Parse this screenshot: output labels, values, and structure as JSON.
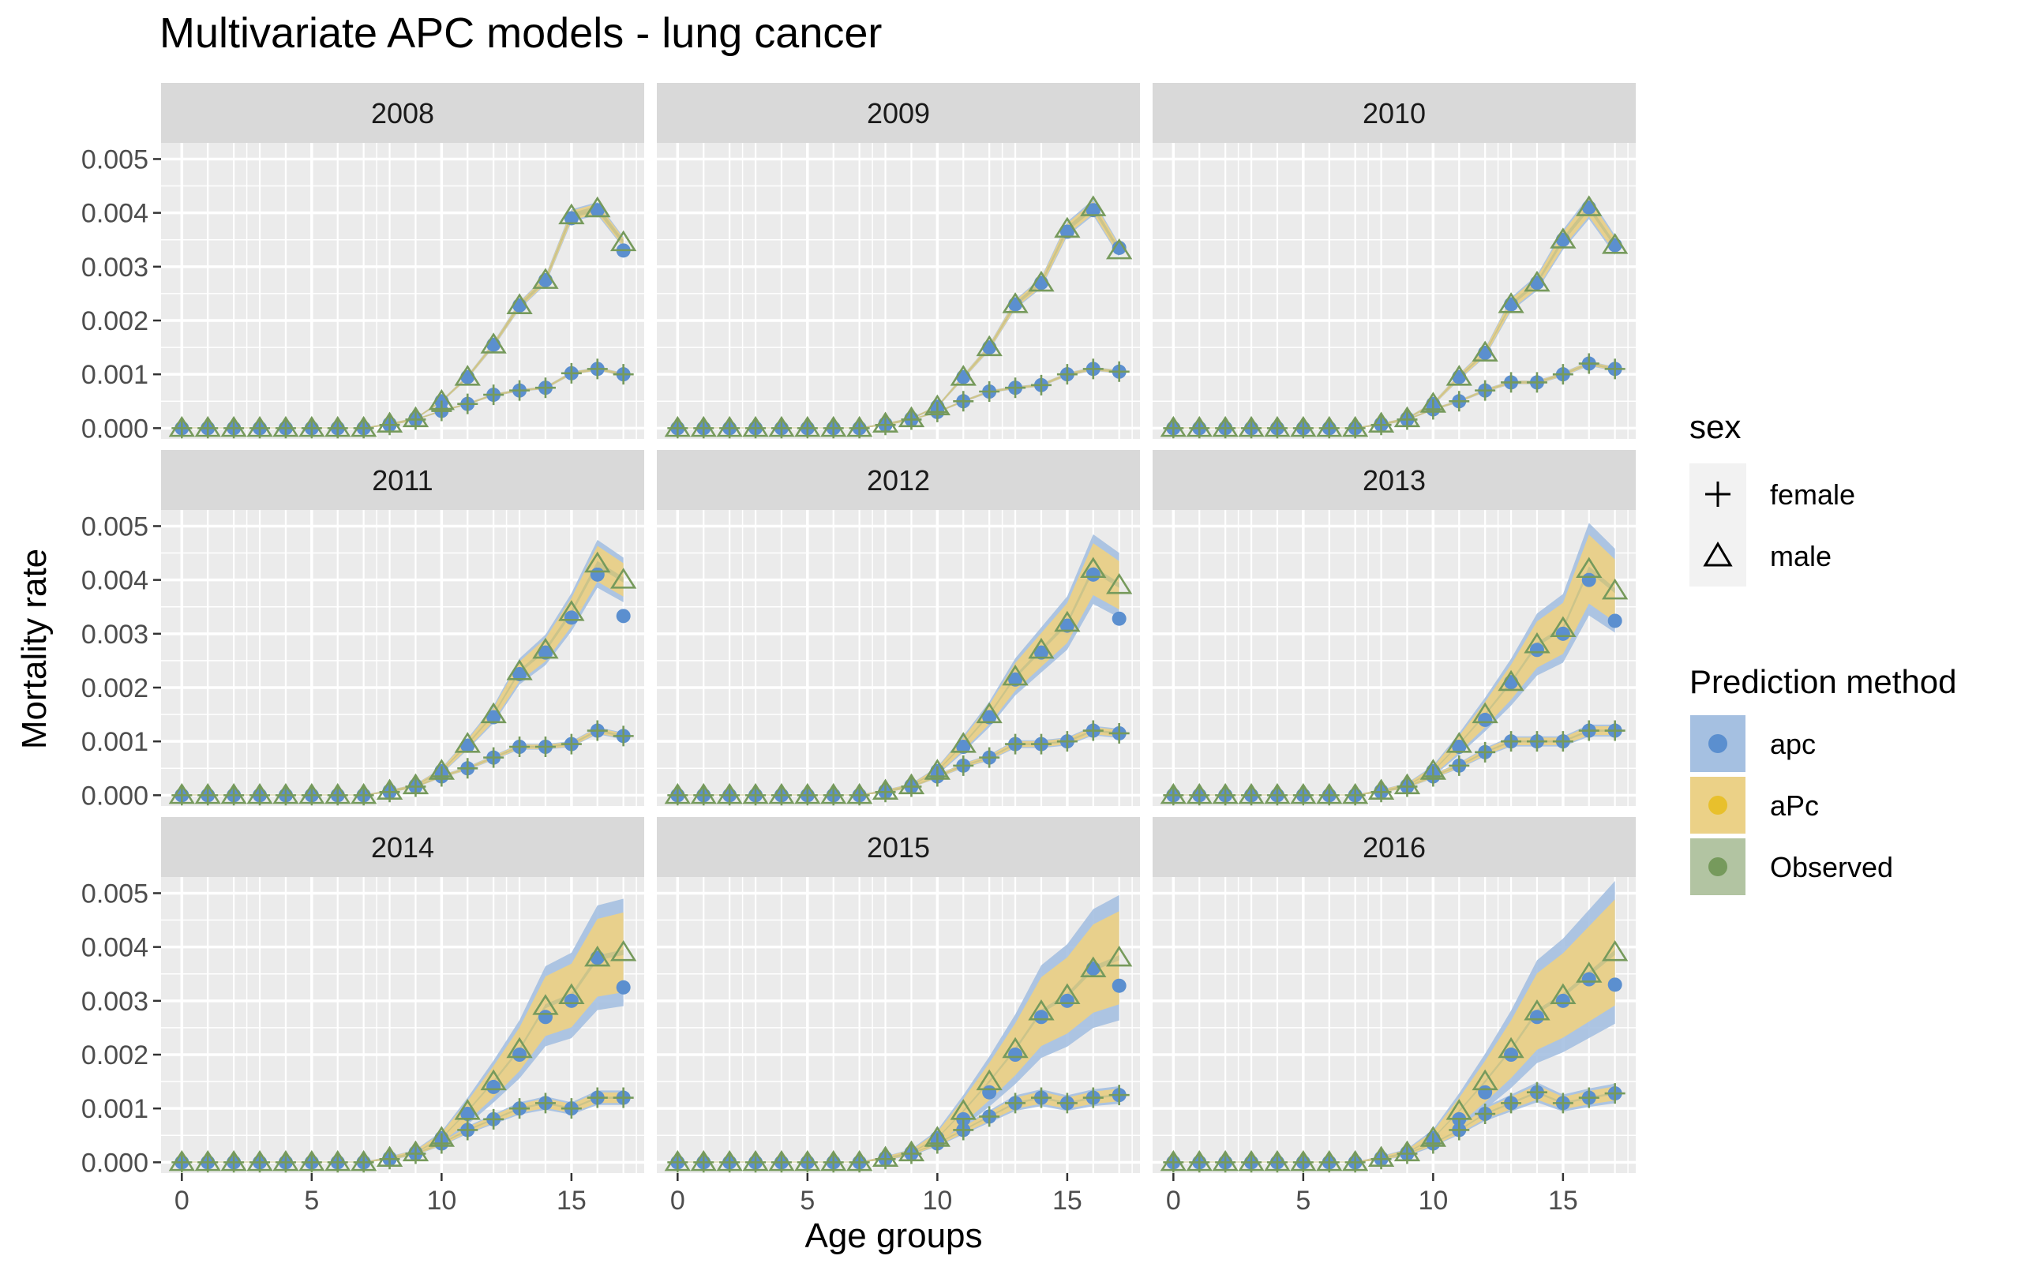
{
  "chart_data": {
    "type": "line",
    "title": "Multivariate APC models - lung cancer",
    "xlabel": "Age groups",
    "ylabel": "Mortality rate",
    "xlim": [
      -0.8,
      17.8
    ],
    "ylim": [
      -0.0002,
      0.0053
    ],
    "x_ticks": [
      0,
      5,
      10,
      15
    ],
    "y_ticks": [
      "0.000",
      "0.001",
      "0.002",
      "0.003",
      "0.004",
      "0.005"
    ],
    "y_tick_values": [
      0,
      0.001,
      0.002,
      0.003,
      0.004,
      0.005
    ],
    "grid": true,
    "legend_position": "right",
    "legends": [
      {
        "title": "sex",
        "entries": [
          {
            "label": "female",
            "shape": "plus"
          },
          {
            "label": "male",
            "shape": "triangle"
          }
        ]
      },
      {
        "title": "Prediction method",
        "entries": [
          {
            "label": "apc",
            "color": "#5b8fcf",
            "fill": "#a5c0e1"
          },
          {
            "label": "aPc",
            "color": "#e8c02c",
            "fill": "#ebd187"
          },
          {
            "label": "Observed",
            "color": "#769a5c",
            "fill": "#b2c4a2"
          }
        ]
      }
    ],
    "panels": [
      {
        "year": "2008",
        "male": [
          0,
          0,
          0,
          0,
          0,
          0,
          0,
          0,
          8e-05,
          0.00018,
          0.0005,
          0.00095,
          0.00155,
          0.00228,
          0.00275,
          0.00395,
          0.00408,
          0.00345
        ],
        "female": [
          0,
          0,
          0,
          0,
          0,
          0,
          0,
          0,
          6e-05,
          0.00016,
          0.00032,
          0.00045,
          0.00062,
          0.0007,
          0.00075,
          0.00102,
          0.0011,
          0.001
        ],
        "apc_male": [
          0,
          0,
          0,
          0,
          0,
          0,
          0,
          0,
          8e-05,
          0.00018,
          0.0005,
          0.00095,
          0.00155,
          0.00228,
          0.00275,
          0.0039,
          0.00405,
          0.0033
        ],
        "apc_female": [
          0,
          0,
          0,
          0,
          0,
          0,
          0,
          0,
          6e-05,
          0.00016,
          0.00032,
          0.00045,
          0.00062,
          0.0007,
          0.00075,
          0.00102,
          0.0011,
          0.001
        ],
        "band": 8e-05
      },
      {
        "year": "2009",
        "male": [
          0,
          0,
          0,
          0,
          0,
          0,
          0,
          0,
          8e-05,
          0.00018,
          0.0004,
          0.00095,
          0.0015,
          0.0023,
          0.0027,
          0.0037,
          0.0041,
          0.0033
        ],
        "female": [
          0,
          0,
          0,
          0,
          0,
          0,
          0,
          0,
          6e-05,
          0.00016,
          0.0003,
          0.0005,
          0.00068,
          0.00075,
          0.0008,
          0.001,
          0.0011,
          0.00105
        ],
        "apc_male": [
          0,
          0,
          0,
          0,
          0,
          0,
          0,
          0,
          8e-05,
          0.00018,
          0.0004,
          0.00095,
          0.0015,
          0.0023,
          0.0027,
          0.00365,
          0.00405,
          0.00335
        ],
        "apc_female": [
          0,
          0,
          0,
          0,
          0,
          0,
          0,
          0,
          6e-05,
          0.00016,
          0.0003,
          0.0005,
          0.00068,
          0.00075,
          0.0008,
          0.001,
          0.0011,
          0.00105
        ],
        "band": 0.0001
      },
      {
        "year": "2010",
        "male": [
          0,
          0,
          0,
          0,
          0,
          0,
          0,
          0,
          8e-05,
          0.00018,
          0.00045,
          0.00095,
          0.0014,
          0.0023,
          0.0027,
          0.0035,
          0.0041,
          0.0034
        ],
        "female": [
          0,
          0,
          0,
          0,
          0,
          0,
          0,
          0,
          6e-05,
          0.00016,
          0.00035,
          0.0005,
          0.0007,
          0.00085,
          0.00085,
          0.001,
          0.0012,
          0.0011
        ],
        "apc_male": [
          0,
          0,
          0,
          0,
          0,
          0,
          0,
          0,
          8e-05,
          0.00018,
          0.00045,
          0.00095,
          0.0014,
          0.0023,
          0.0027,
          0.0035,
          0.0041,
          0.0034
        ],
        "apc_female": [
          0,
          0,
          0,
          0,
          0,
          0,
          0,
          0,
          6e-05,
          0.00016,
          0.00035,
          0.0005,
          0.0007,
          0.00085,
          0.00085,
          0.001,
          0.0012,
          0.0011
        ],
        "band": 0.00015
      },
      {
        "year": "2011",
        "male": [
          0,
          0,
          0,
          0,
          0,
          0,
          0,
          0,
          8e-05,
          0.00018,
          0.00045,
          0.00095,
          0.0015,
          0.0023,
          0.0027,
          0.0034,
          0.0043,
          0.004
        ],
        "female": [
          0,
          0,
          0,
          0,
          0,
          0,
          0,
          0,
          6e-05,
          0.00016,
          0.00035,
          0.0005,
          0.0007,
          0.0009,
          0.0009,
          0.00095,
          0.0012,
          0.0011
        ],
        "apc_male": [
          0,
          0,
          0,
          0,
          0,
          0,
          0,
          0,
          8e-05,
          0.00018,
          0.00045,
          0.00092,
          0.00145,
          0.00225,
          0.00265,
          0.0033,
          0.0041,
          0.00333
        ],
        "apc_female": [
          0,
          0,
          0,
          0,
          0,
          0,
          0,
          0,
          6e-05,
          0.00016,
          0.00035,
          0.0005,
          0.0007,
          0.0009,
          0.0009,
          0.00095,
          0.0012,
          0.0011
        ],
        "band": 0.0003
      },
      {
        "year": "2012",
        "male": [
          0,
          0,
          0,
          0,
          0,
          0,
          0,
          0,
          8e-05,
          0.00018,
          0.00045,
          0.00095,
          0.0015,
          0.0022,
          0.0027,
          0.0032,
          0.0042,
          0.0039
        ],
        "female": [
          0,
          0,
          0,
          0,
          0,
          0,
          0,
          0,
          6e-05,
          0.00016,
          0.00035,
          0.00055,
          0.0007,
          0.00095,
          0.00095,
          0.001,
          0.0012,
          0.00115
        ],
        "apc_male": [
          0,
          0,
          0,
          0,
          0,
          0,
          0,
          0,
          8e-05,
          0.00018,
          0.00045,
          0.0009,
          0.00145,
          0.00215,
          0.00265,
          0.00315,
          0.0041,
          0.00328
        ],
        "apc_female": [
          0,
          0,
          0,
          0,
          0,
          0,
          0,
          0,
          6e-05,
          0.00016,
          0.00035,
          0.00055,
          0.0007,
          0.00095,
          0.00095,
          0.001,
          0.0012,
          0.00115
        ],
        "band": 0.00045
      },
      {
        "year": "2013",
        "male": [
          0,
          0,
          0,
          0,
          0,
          0,
          0,
          0,
          8e-05,
          0.00018,
          0.00045,
          0.00095,
          0.0015,
          0.0021,
          0.0028,
          0.0031,
          0.0042,
          0.0038
        ],
        "female": [
          0,
          0,
          0,
          0,
          0,
          0,
          0,
          0,
          6e-05,
          0.00016,
          0.00035,
          0.00055,
          0.0008,
          0.001,
          0.001,
          0.001,
          0.0012,
          0.0012
        ],
        "apc_male": [
          0,
          0,
          0,
          0,
          0,
          0,
          0,
          0,
          8e-05,
          0.00018,
          0.00045,
          0.0009,
          0.0014,
          0.0021,
          0.0027,
          0.003,
          0.004,
          0.00324
        ],
        "apc_female": [
          0,
          0,
          0,
          0,
          0,
          0,
          0,
          0,
          6e-05,
          0.00016,
          0.00035,
          0.00055,
          0.0008,
          0.001,
          0.001,
          0.001,
          0.0012,
          0.0012
        ],
        "band": 0.0006
      },
      {
        "year": "2014",
        "male": [
          0,
          0,
          0,
          0,
          0,
          0,
          0,
          0,
          8e-05,
          0.00018,
          0.00045,
          0.00095,
          0.0015,
          0.0021,
          0.0029,
          0.0031,
          0.0038,
          0.0039
        ],
        "female": [
          0,
          0,
          0,
          0,
          0,
          0,
          0,
          0,
          6e-05,
          0.00016,
          0.00035,
          0.0006,
          0.0008,
          0.001,
          0.0011,
          0.001,
          0.0012,
          0.0012
        ],
        "apc_male": [
          0,
          0,
          0,
          0,
          0,
          0,
          0,
          0,
          8e-05,
          0.00018,
          0.00045,
          0.0009,
          0.0014,
          0.002,
          0.0027,
          0.003,
          0.0038,
          0.00325
        ],
        "apc_female": [
          0,
          0,
          0,
          0,
          0,
          0,
          0,
          0,
          6e-05,
          0.00016,
          0.00035,
          0.0006,
          0.0008,
          0.001,
          0.0011,
          0.001,
          0.0012,
          0.0012
        ],
        "band": 0.00075
      },
      {
        "year": "2015",
        "male": [
          0,
          0,
          0,
          0,
          0,
          0,
          0,
          0,
          8e-05,
          0.00018,
          0.00045,
          0.00095,
          0.0015,
          0.0021,
          0.0028,
          0.0031,
          0.0036,
          0.0038
        ],
        "female": [
          0,
          0,
          0,
          0,
          0,
          0,
          0,
          0,
          6e-05,
          0.00016,
          0.00035,
          0.0006,
          0.00085,
          0.0011,
          0.0012,
          0.0011,
          0.0012,
          0.00125
        ],
        "apc_male": [
          0,
          0,
          0,
          0,
          0,
          0,
          0,
          0,
          8e-05,
          0.00018,
          0.00045,
          0.0008,
          0.0013,
          0.002,
          0.0027,
          0.003,
          0.0036,
          0.00328
        ],
        "apc_female": [
          0,
          0,
          0,
          0,
          0,
          0,
          0,
          0,
          6e-05,
          0.00016,
          0.00035,
          0.0006,
          0.00085,
          0.0011,
          0.0012,
          0.0011,
          0.0012,
          0.00125
        ],
        "band": 0.0009
      },
      {
        "year": "2016",
        "male": [
          0,
          0,
          0,
          0,
          0,
          0,
          0,
          0,
          8e-05,
          0.00018,
          0.00045,
          0.00095,
          0.0015,
          0.0021,
          0.0028,
          0.0031,
          0.0035,
          0.0039
        ],
        "female": [
          0,
          0,
          0,
          0,
          0,
          0,
          0,
          0,
          6e-05,
          0.00016,
          0.00035,
          0.0006,
          0.0009,
          0.0011,
          0.0013,
          0.0011,
          0.0012,
          0.00128
        ],
        "apc_male": [
          0,
          0,
          0,
          0,
          0,
          0,
          0,
          0,
          8e-05,
          0.00018,
          0.00045,
          0.0008,
          0.0013,
          0.002,
          0.0027,
          0.003,
          0.0034,
          0.0033
        ],
        "apc_female": [
          0,
          0,
          0,
          0,
          0,
          0,
          0,
          0,
          6e-05,
          0.00016,
          0.00035,
          0.0006,
          0.0009,
          0.0011,
          0.0013,
          0.0011,
          0.0012,
          0.00128
        ],
        "band": 0.001
      }
    ]
  }
}
